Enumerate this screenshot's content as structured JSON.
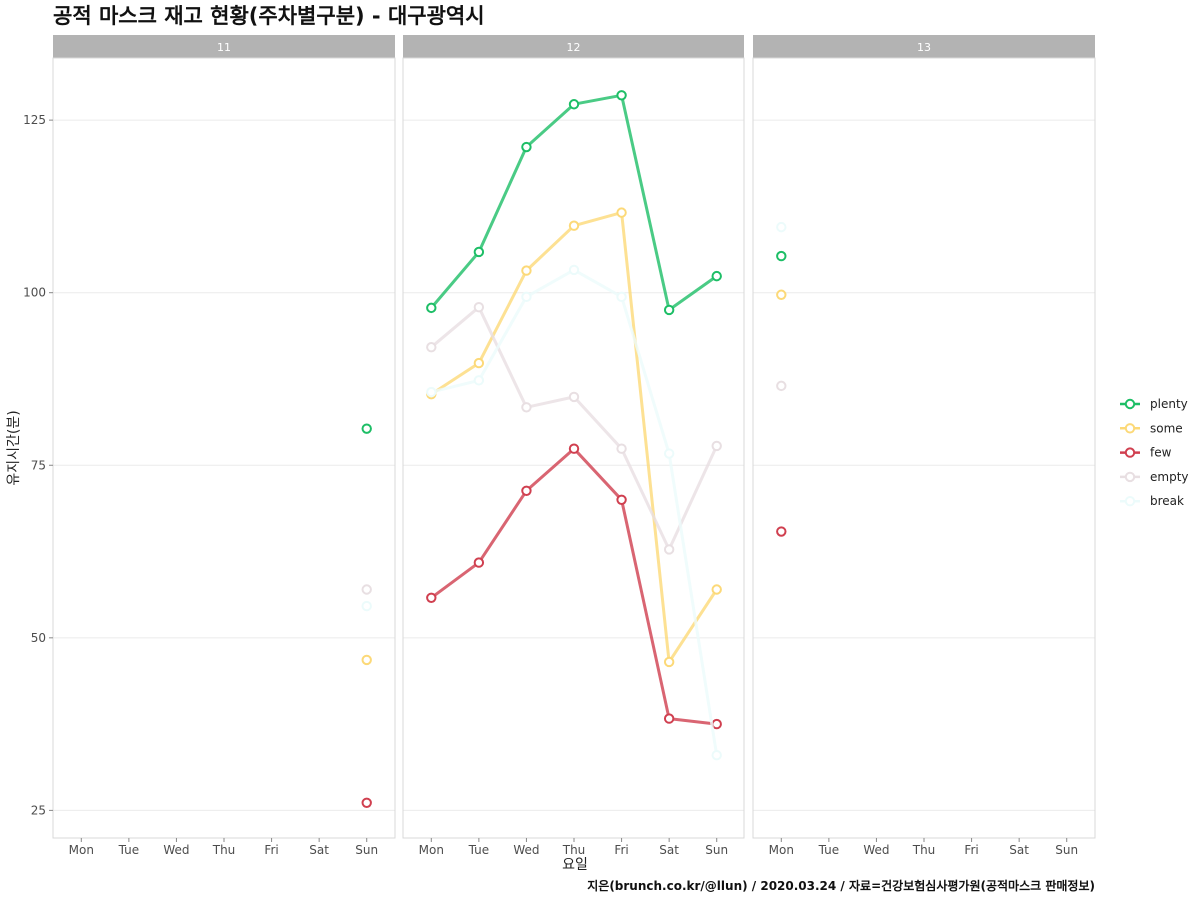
{
  "chart_data": {
    "type": "line",
    "title": "공적 마스크 재고 현황(주차별구분) - 대구광역시",
    "xlabel": "요일",
    "ylabel": "유지시간(분)",
    "caption": "지은(brunch.co.kr/@llun) / 2020.03.24 / 자료=건강보험심사평가원(공적마스크 판매정보)",
    "categories": [
      "Mon",
      "Tue",
      "Wed",
      "Thu",
      "Fri",
      "Sat",
      "Sun"
    ],
    "y_ticks": [
      25,
      50,
      75,
      100,
      125
    ],
    "ylim": [
      21,
      134
    ],
    "grid": true,
    "legend_position": "right",
    "facets": [
      "11",
      "12",
      "13"
    ],
    "series": [
      {
        "name": "plenty",
        "color": "#1dbe66",
        "values": {
          "11": [
            null,
            null,
            null,
            null,
            null,
            null,
            80.3
          ],
          "12": [
            97.8,
            105.9,
            121.1,
            127.3,
            128.6,
            97.5,
            102.4
          ],
          "13": [
            105.3,
            null,
            null,
            null,
            null,
            null,
            null
          ]
        }
      },
      {
        "name": "some",
        "color": "#fcd978",
        "values": {
          "11": [
            null,
            null,
            null,
            null,
            null,
            null,
            46.8
          ],
          "12": [
            85.3,
            89.8,
            103.2,
            109.7,
            111.6,
            46.5,
            57.0
          ],
          "13": [
            99.7,
            null,
            null,
            null,
            null,
            null,
            null
          ]
        }
      },
      {
        "name": "few",
        "color": "#d03f4f",
        "values": {
          "11": [
            null,
            null,
            null,
            null,
            null,
            null,
            26.1
          ],
          "12": [
            55.8,
            60.9,
            71.3,
            77.4,
            70.0,
            38.3,
            37.5
          ],
          "13": [
            65.4,
            null,
            null,
            null,
            null,
            null,
            null
          ]
        }
      },
      {
        "name": "empty",
        "color": "#e8dfe2",
        "values": {
          "11": [
            null,
            null,
            null,
            null,
            null,
            null,
            57.0
          ],
          "12": [
            92.1,
            97.9,
            83.4,
            84.9,
            77.4,
            62.8,
            77.8
          ],
          "13": [
            86.5,
            null,
            null,
            null,
            null,
            null,
            null
          ]
        }
      },
      {
        "name": "break",
        "color": "#ecfbfb",
        "values": {
          "11": [
            null,
            null,
            null,
            null,
            null,
            null,
            54.6
          ],
          "12": [
            85.6,
            87.3,
            99.4,
            103.3,
            99.4,
            76.7,
            33.0
          ],
          "13": [
            109.5,
            null,
            null,
            null,
            null,
            null,
            null
          ]
        }
      }
    ]
  }
}
